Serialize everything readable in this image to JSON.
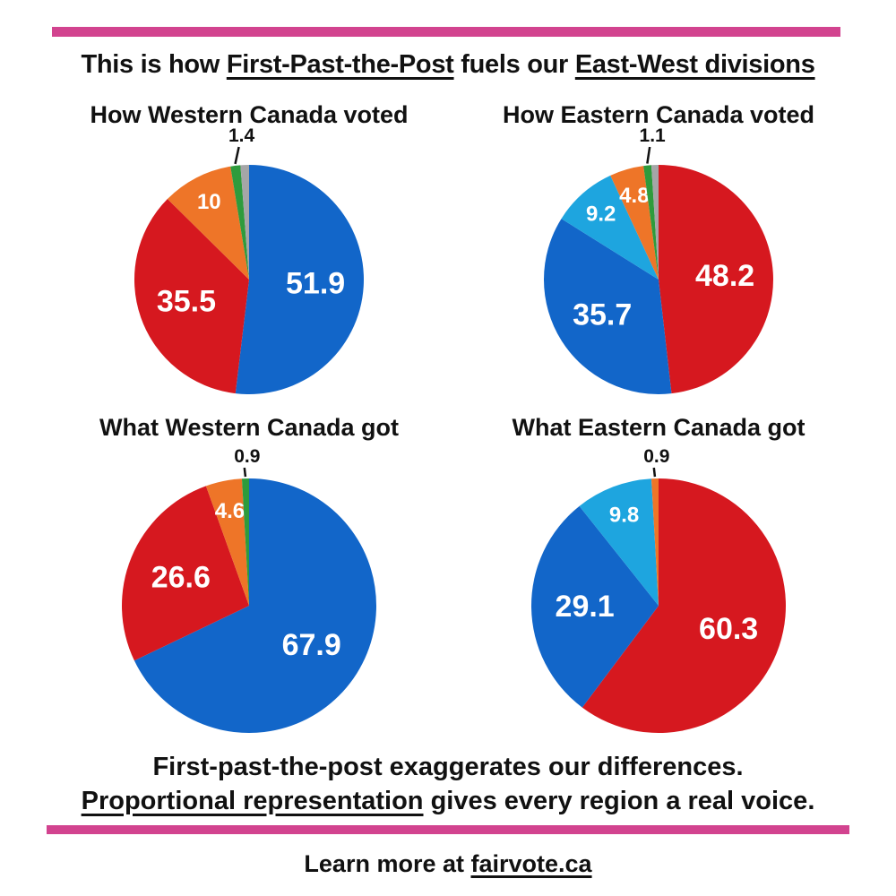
{
  "colors": {
    "pink": "#D2438F",
    "blue": "#1266C9",
    "red": "#D6181F",
    "orange": "#EE7528",
    "green": "#2E9B3C",
    "lightblue": "#1EA5DF",
    "gray": "#A5A6A7"
  },
  "header": {
    "title_parts": [
      {
        "text": "This is how "
      },
      {
        "text": "First-Past-the-Post",
        "underline": true
      },
      {
        "text": " fuels our "
      },
      {
        "text": "East-West divisions",
        "underline": true
      }
    ]
  },
  "chart_data": [
    {
      "type": "pie",
      "title": "How Western Canada voted",
      "slices": [
        {
          "label": "51.9",
          "value": 51.9,
          "color": "#1266C9"
        },
        {
          "label": "35.5",
          "value": 35.5,
          "color": "#D6181F"
        },
        {
          "label": "10",
          "value": 10.0,
          "color": "#EE7528"
        },
        {
          "label": "1.4",
          "value": 1.4,
          "color": "#2E9B3C",
          "callout": true
        },
        {
          "label": "",
          "value": 1.2,
          "color": "#A5A6A7"
        }
      ]
    },
    {
      "type": "pie",
      "title": "How Eastern Canada voted",
      "slices": [
        {
          "label": "48.2",
          "value": 48.2,
          "color": "#D6181F"
        },
        {
          "label": "35.7",
          "value": 35.7,
          "color": "#1266C9"
        },
        {
          "label": "9.2",
          "value": 9.2,
          "color": "#1EA5DF"
        },
        {
          "label": "4.8",
          "value": 4.8,
          "color": "#EE7528"
        },
        {
          "label": "1.1",
          "value": 1.1,
          "color": "#2E9B3C",
          "callout": true
        },
        {
          "label": "",
          "value": 1.0,
          "color": "#A5A6A7"
        }
      ]
    },
    {
      "type": "pie",
      "title": "What Western Canada got",
      "slices": [
        {
          "label": "67.9",
          "value": 67.9,
          "color": "#1266C9"
        },
        {
          "label": "26.6",
          "value": 26.6,
          "color": "#D6181F"
        },
        {
          "label": "4.6",
          "value": 4.6,
          "color": "#EE7528"
        },
        {
          "label": "0.9",
          "value": 0.9,
          "color": "#2E9B3C",
          "callout": true
        }
      ]
    },
    {
      "type": "pie",
      "title": "What Eastern Canada got",
      "slices": [
        {
          "label": "60.3",
          "value": 60.3,
          "color": "#D6181F"
        },
        {
          "label": "29.1",
          "value": 29.1,
          "color": "#1266C9"
        },
        {
          "label": "9.8",
          "value": 9.8,
          "color": "#1EA5DF"
        },
        {
          "label": "0.9",
          "value": 0.9,
          "color": "#EE7528",
          "callout": true
        }
      ]
    }
  ],
  "footer": {
    "line1": "First-past-the-post exaggerates our differences.",
    "line2_parts": [
      {
        "text": "Proportional representation",
        "underline": true
      },
      {
        "text": " gives every region a real voice."
      }
    ],
    "learn_more_parts": [
      {
        "text": "Learn more at "
      },
      {
        "text": "fairvote.ca",
        "underline": true
      }
    ]
  }
}
